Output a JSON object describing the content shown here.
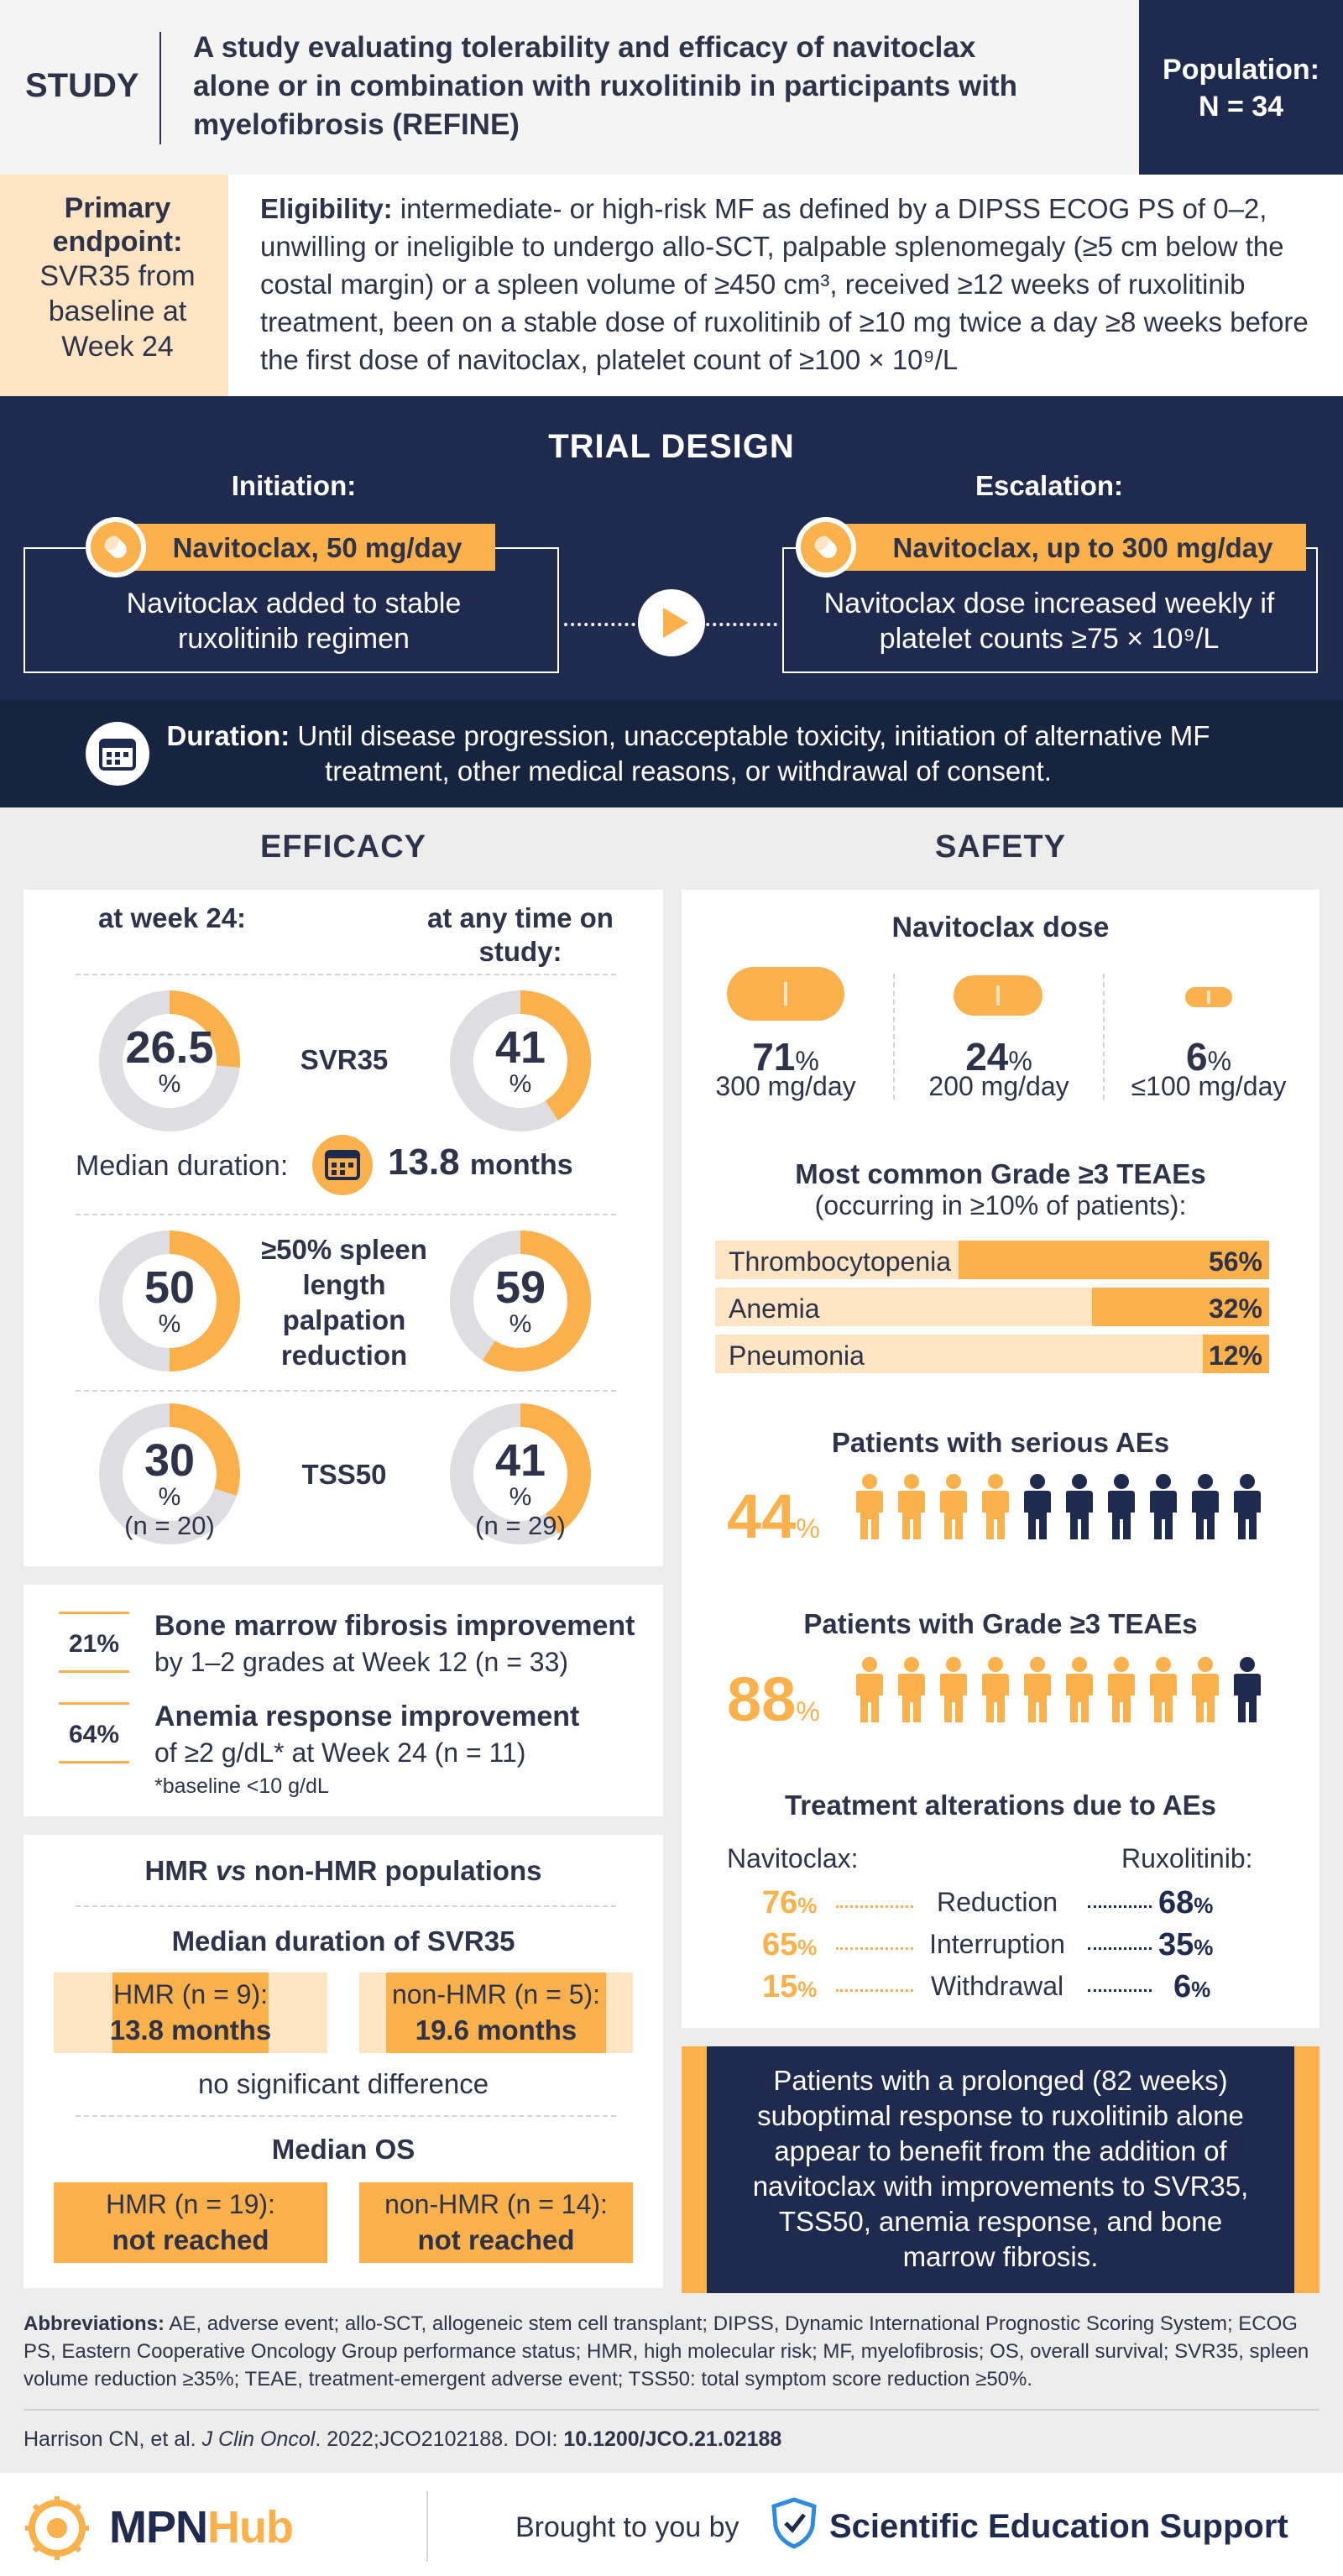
{
  "header": {
    "study_label": "STUDY",
    "title": "A study evaluating tolerability and efficacy of navitoclax alone or in combination with ruxolitinib in participants with myelofibrosis (REFINE)",
    "population_label": "Population:",
    "population_value": "N = 34"
  },
  "endpoint": {
    "label": "Primary endpoint:",
    "text": "SVR35 from baseline at Week 24"
  },
  "eligibility": {
    "label": "Eligibility:",
    "text": "intermediate- or high-risk MF as defined by a DIPSS ECOG PS of 0–2, unwilling or ineligible to undergo allo-SCT, palpable splenomegaly (≥5 cm below the costal margin) or a spleen volume of ≥450 cm³, received ≥12 weeks of ruxolitinib treatment, been on a stable dose of ruxolitinib of ≥10 mg twice a day ≥8 weeks before the first dose of navitoclax, platelet count of ≥100 × 10⁹/L"
  },
  "trial_design": {
    "title": "TRIAL DESIGN",
    "initiation_label": "Initiation:",
    "initiation_dose": "Navitoclax, 50 mg/day",
    "initiation_text": "Navitoclax added to stable ruxolitinib regimen",
    "escalation_label": "Escalation:",
    "escalation_dose": "Navitoclax, up to 300 mg/day",
    "escalation_text": "Navitoclax dose increased weekly if platelet counts ≥75 × 10⁹/L"
  },
  "duration": {
    "label": "Duration:",
    "text": "Until disease progression, unacceptable toxicity, initiation of alternative MF treatment, other medical reasons, or withdrawal of consent."
  },
  "efficacy": {
    "title": "EFFICACY",
    "col_week24": "at week 24:",
    "col_anytime": "at any time on study:",
    "pct": "%",
    "rows": [
      {
        "label": "SVR35",
        "week24": 26.5,
        "week24_text": "26.5",
        "anytime": 41,
        "anytime_text": "41"
      },
      {
        "label": "≥50% spleen length palpation reduction",
        "week24": 50,
        "week24_text": "50",
        "anytime": 59,
        "anytime_text": "59"
      },
      {
        "label": "TSS50",
        "week24": 30,
        "week24_text": "30",
        "anytime": 41,
        "anytime_text": "41",
        "week24_n": "(n = 20)",
        "anytime_n": "(n = 29)"
      }
    ],
    "median_duration_label": "Median duration:",
    "median_duration_value": "13.8",
    "median_duration_unit": "months",
    "bone_marrow_pct": "21%",
    "bone_marrow_title": "Bone marrow fibrosis improvement",
    "bone_marrow_text": "by 1–2 grades at Week 12 (n = 33)",
    "anemia_pct": "64%",
    "anemia_title": "Anemia response improvement",
    "anemia_text": "of ≥2 g/dL* at Week 24 (n = 11)",
    "anemia_note": "*baseline <10 g/dL"
  },
  "hmr": {
    "title_a": "HMR ",
    "title_vs": "vs",
    "title_b": " non-HMR populations",
    "svr_title": "Median duration of SVR35",
    "svr_hmr_label": "HMR (n = 9):",
    "svr_hmr_value": "13.8 months",
    "svr_non_label": "non-HMR (n = 5):",
    "svr_non_value": "19.6 months",
    "no_diff": "no significant difference",
    "os_title": "Median OS",
    "os_hmr_label": "HMR (n = 19):",
    "os_hmr_value": "not reached",
    "os_non_label": "non-HMR (n = 14):",
    "os_non_value": "not reached"
  },
  "safety": {
    "title": "SAFETY",
    "dose_title": "Navitoclax dose",
    "doses": [
      {
        "pct": "71",
        "label": "300 mg/day"
      },
      {
        "pct": "24",
        "label": "200 mg/day"
      },
      {
        "pct": "6",
        "label": "≤100 mg/day"
      }
    ],
    "pct_sign": "%",
    "teae_title": "Most common Grade ≥3 TEAEs",
    "teae_subtitle": "(occurring in ≥10% of patients):",
    "teaes": [
      {
        "name": "Thrombocytopenia",
        "value": 56,
        "text": "56%"
      },
      {
        "name": "Anemia",
        "value": 32,
        "text": "32%"
      },
      {
        "name": "Pneumonia",
        "value": 12,
        "text": "12%"
      }
    ],
    "serious_title": "Patients with serious AEs",
    "serious_pct": "44",
    "serious_fraction": 0.44,
    "grade3_title": "Patients with Grade ≥3 TEAEs",
    "grade3_pct": "88",
    "grade3_fraction": 0.88,
    "alterations_title": "Treatment alterations due to AEs",
    "navitoclax_label": "Navitoclax:",
    "ruxolitinib_label": "Ruxolitinib:",
    "alterations": [
      {
        "type": "Reduction",
        "navi": "76",
        "rux": "68"
      },
      {
        "type": "Interruption",
        "navi": "65",
        "rux": "35"
      },
      {
        "type": "Withdrawal",
        "navi": "15",
        "rux": "6"
      }
    ]
  },
  "conclusion": "Patients with a prolonged (82 weeks) suboptimal response to ruxolitinib alone appear to benefit from the addition of navitoclax with improvements to SVR35, TSS50, anemia response, and bone marrow fibrosis.",
  "abbreviations": {
    "label": "Abbreviations:",
    "text": "AE, adverse event; allo-SCT, allogeneic stem cell transplant; DIPSS, Dynamic International Prognostic Scoring System; ECOG PS, Eastern Cooperative Oncology Group performance status; HMR, high molecular risk; MF, myelofibrosis; OS, overall survival; SVR35, spleen volume reduction ≥35%; TEAE, treatment-emergent adverse event; TSS50: total symptom score reduction ≥50%."
  },
  "citation": {
    "authors": "Harrison CN, et al. ",
    "journal": "J Clin Oncol",
    "rest": ". 2022;JCO2102188. DOI: ",
    "doi": "10.1200/JCO.21.02188"
  },
  "footer": {
    "logo_mpn": "MPN",
    "logo_hub": "Hub",
    "brought": "Brought to you by",
    "ses": "Scientific Education Support"
  },
  "colors": {
    "navy": "#1e2b4e",
    "orange": "#fbb14b",
    "cream": "#fde4c3",
    "grey_ring": "#dddde2"
  }
}
